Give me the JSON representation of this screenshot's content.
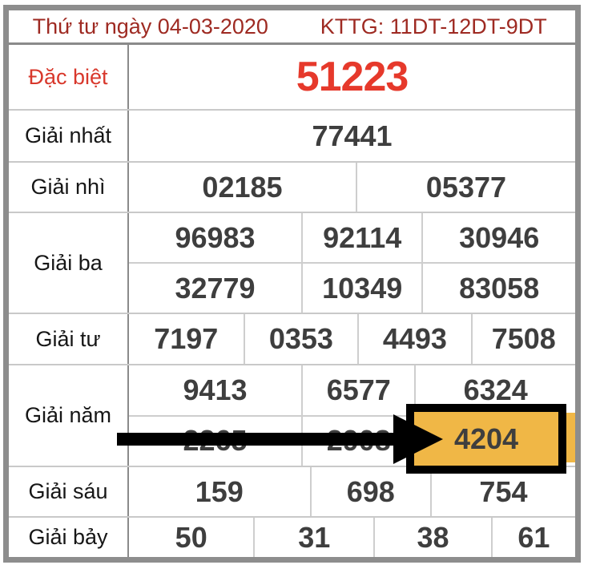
{
  "header": {
    "date": "Thứ tư ngày 04-03-2020",
    "kttg": "KTTG: 11DT-12DT-9DT"
  },
  "prizes": [
    {
      "name": "special",
      "label": "Đặc biệt",
      "rows": [
        [
          "51223"
        ]
      ]
    },
    {
      "name": "first",
      "label": "Giải nhất",
      "rows": [
        [
          "77441"
        ]
      ]
    },
    {
      "name": "second",
      "label": "Giải nhì",
      "rows": [
        [
          "02185",
          "05377"
        ]
      ]
    },
    {
      "name": "third",
      "label": "Giải ba",
      "rows": [
        [
          "96983",
          "92114",
          "30946"
        ],
        [
          "32779",
          "10349",
          "83058"
        ]
      ]
    },
    {
      "name": "fourth",
      "label": "Giải tư",
      "rows": [
        [
          "7197",
          "0353",
          "4493",
          "7508"
        ]
      ]
    },
    {
      "name": "fifth",
      "label": "Giải năm",
      "rows": [
        [
          "9413",
          "6577",
          "6324"
        ],
        [
          "2265",
          "2908",
          "4204"
        ]
      ]
    },
    {
      "name": "sixth",
      "label": "Giải sáu",
      "rows": [
        [
          "159",
          "698",
          "754"
        ]
      ]
    },
    {
      "name": "seventh",
      "label": "Giải bảy",
      "rows": [
        [
          "50",
          "31",
          "38",
          "61"
        ]
      ]
    }
  ],
  "highlight": {
    "value": "4204",
    "target_prize": "Giải năm",
    "fill_color": "#f0b746",
    "border_color": "#000000",
    "arrow_color": "#000000"
  },
  "colors": {
    "header_text": "#9e2a22",
    "special_label": "#d8382c",
    "special_number": "#e6392b",
    "number_text": "#3e3e3e",
    "label_text": "#161616",
    "table_border": "#8d8d8d",
    "grid_line": "#cecece",
    "label_divider": "#8a8a8a"
  }
}
